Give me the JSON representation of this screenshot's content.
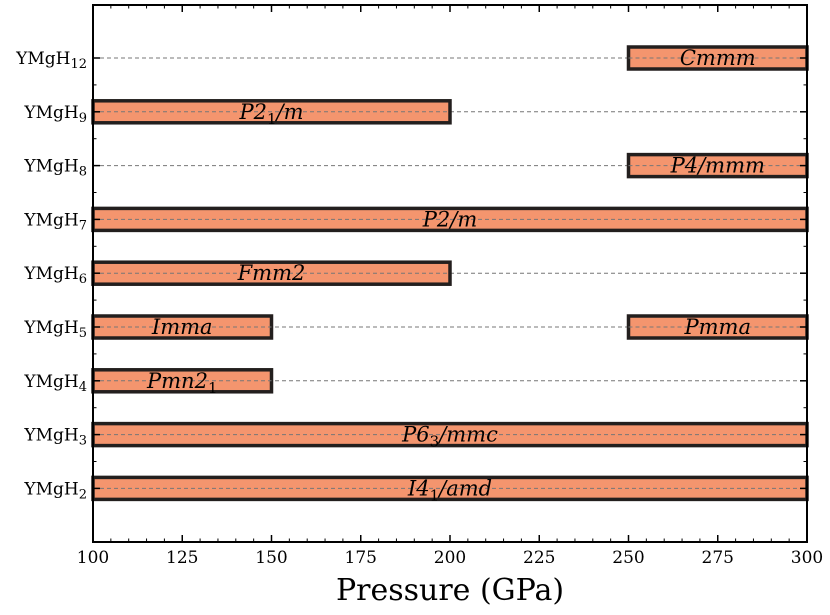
{
  "chart_data": {
    "type": "bar",
    "orientation": "horizontal-range",
    "xlabel": "Pressure (GPa)",
    "xlim": [
      100,
      300
    ],
    "xticks": [
      100,
      125,
      150,
      175,
      200,
      225,
      250,
      275,
      300
    ],
    "grid": "dashed horizontal line per compound",
    "bar_fill": "#F4956E",
    "bar_edge": "#231F1E",
    "categories": [
      {
        "base": "YMgH",
        "sub": "12"
      },
      {
        "base": "YMgH",
        "sub": "9"
      },
      {
        "base": "YMgH",
        "sub": "8"
      },
      {
        "base": "YMgH",
        "sub": "7"
      },
      {
        "base": "YMgH",
        "sub": "6"
      },
      {
        "base": "YMgH",
        "sub": "5"
      },
      {
        "base": "YMgH",
        "sub": "4"
      },
      {
        "base": "YMgH",
        "sub": "3"
      },
      {
        "base": "YMgH",
        "sub": "2"
      }
    ],
    "bars": [
      {
        "category": 0,
        "start": 250,
        "end": 300,
        "label": [
          {
            "t": "Cmmm"
          }
        ]
      },
      {
        "category": 1,
        "start": 100,
        "end": 200,
        "label": [
          {
            "t": "P2"
          },
          {
            "t": "1",
            "sub": true
          },
          {
            "t": "/m"
          }
        ]
      },
      {
        "category": 2,
        "start": 250,
        "end": 300,
        "label": [
          {
            "t": "P4/mmm"
          }
        ]
      },
      {
        "category": 3,
        "start": 100,
        "end": 300,
        "label": [
          {
            "t": "P2/m"
          }
        ]
      },
      {
        "category": 4,
        "start": 100,
        "end": 200,
        "label": [
          {
            "t": "Fmm2"
          }
        ]
      },
      {
        "category": 5,
        "start": 100,
        "end": 150,
        "label": [
          {
            "t": "Imma"
          }
        ]
      },
      {
        "category": 5,
        "start": 250,
        "end": 300,
        "label": [
          {
            "t": "Pmma"
          }
        ]
      },
      {
        "category": 6,
        "start": 100,
        "end": 150,
        "label": [
          {
            "t": "Pmn2"
          },
          {
            "t": "1",
            "sub": true
          }
        ]
      },
      {
        "category": 7,
        "start": 100,
        "end": 300,
        "label": [
          {
            "t": "P6"
          },
          {
            "t": "3",
            "sub": true
          },
          {
            "t": "/mmc"
          }
        ]
      },
      {
        "category": 8,
        "start": 100,
        "end": 300,
        "label": [
          {
            "t": "I4"
          },
          {
            "t": "1",
            "sub": true
          },
          {
            "t": "/amd"
          }
        ]
      }
    ]
  }
}
